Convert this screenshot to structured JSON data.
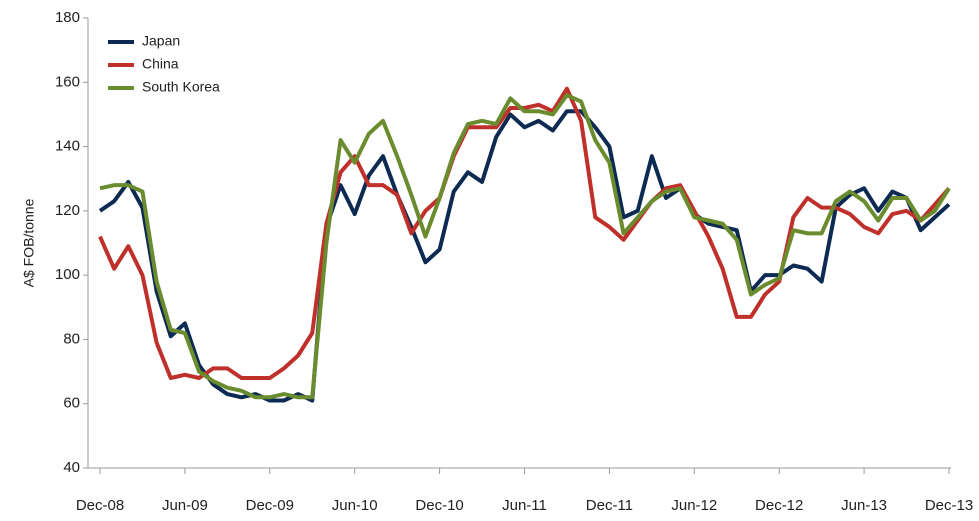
{
  "chart_data": {
    "type": "line",
    "y_label": "A$ FOB/tonne",
    "categories": [
      "Dec-08",
      null,
      null,
      null,
      null,
      null,
      "Jun-09",
      null,
      null,
      null,
      null,
      null,
      "Dec-09",
      null,
      null,
      null,
      null,
      null,
      "Jun-10",
      null,
      null,
      null,
      null,
      null,
      "Dec-10",
      null,
      null,
      null,
      null,
      null,
      "Jun-11",
      null,
      null,
      null,
      null,
      null,
      "Dec-11",
      null,
      null,
      null,
      null,
      null,
      "Jun-12",
      null,
      null,
      null,
      null,
      null,
      "Dec-12",
      null,
      null,
      null,
      null,
      null,
      "Jun-13",
      null,
      null,
      null,
      null,
      null,
      "Dec-13"
    ],
    "series": [
      {
        "name": "Japan",
        "color": "#0c2a52",
        "values": [
          120,
          123,
          129,
          121,
          95,
          81,
          85,
          72,
          66,
          63,
          62,
          63,
          61,
          61,
          63,
          61,
          115,
          128,
          119,
          131,
          137,
          125,
          115,
          104,
          108,
          126,
          132,
          129,
          143,
          150,
          146,
          148,
          145,
          151,
          151,
          146,
          140,
          118,
          120,
          137,
          124,
          127,
          119,
          116,
          115,
          114,
          95,
          100,
          100,
          103,
          102,
          98,
          121,
          125,
          127,
          120,
          126,
          124,
          114,
          118,
          122
        ]
      },
      {
        "name": "China",
        "color": "#c0302a",
        "values": [
          112,
          102,
          109,
          100,
          79,
          68,
          69,
          68,
          71,
          71,
          68,
          68,
          68,
          71,
          75,
          82,
          116,
          132,
          137,
          128,
          128,
          125,
          113,
          120,
          124,
          137,
          146,
          146,
          146,
          152,
          152,
          153,
          151,
          158,
          148,
          118,
          115,
          111,
          117,
          123,
          127,
          128,
          120,
          112,
          102,
          87,
          87,
          94,
          98,
          118,
          124,
          121,
          121,
          119,
          115,
          113,
          119,
          120,
          117,
          122,
          127
        ]
      },
      {
        "name": "South Korea",
        "color": "#6a8c2e",
        "values": [
          127,
          128,
          128,
          126,
          98,
          83,
          82,
          70,
          67,
          65,
          64,
          62,
          62,
          63,
          62,
          62,
          110,
          142,
          135,
          144,
          148,
          137,
          125,
          112,
          124,
          138,
          147,
          148,
          147,
          155,
          151,
          151,
          150,
          156,
          154,
          142,
          135,
          113,
          118,
          123,
          126,
          127,
          118,
          117,
          116,
          111,
          94,
          97,
          99,
          114,
          113,
          113,
          123,
          126,
          123,
          117,
          124,
          124,
          117,
          120,
          127
        ]
      }
    ],
    "ylim": [
      40,
      180
    ],
    "yticks": [
      40,
      60,
      80,
      100,
      120,
      140,
      160,
      180
    ],
    "grid": false,
    "legend": "top-left"
  }
}
